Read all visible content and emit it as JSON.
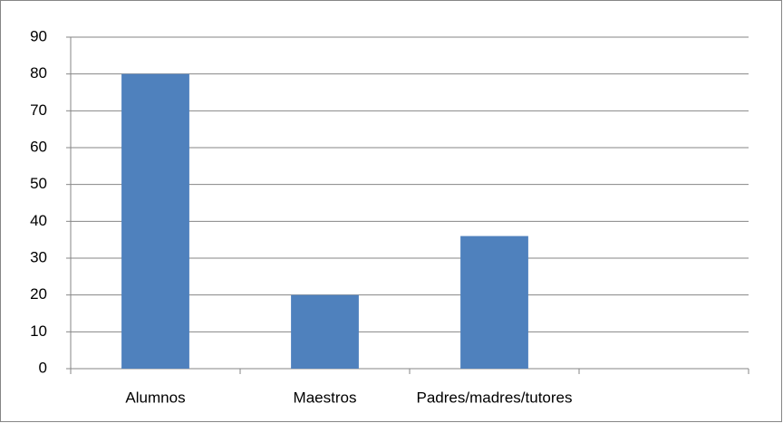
{
  "chart_data": {
    "type": "bar",
    "categories": [
      "Alumnos",
      "Maestros",
      "Padres/madres/tutores",
      null
    ],
    "values": [
      80,
      20,
      36,
      null
    ],
    "color": "#4f81bd",
    "ylim": [
      0,
      90
    ],
    "yticks": [
      0,
      10,
      20,
      30,
      40,
      50,
      60,
      70,
      80,
      90
    ],
    "grid": true
  }
}
